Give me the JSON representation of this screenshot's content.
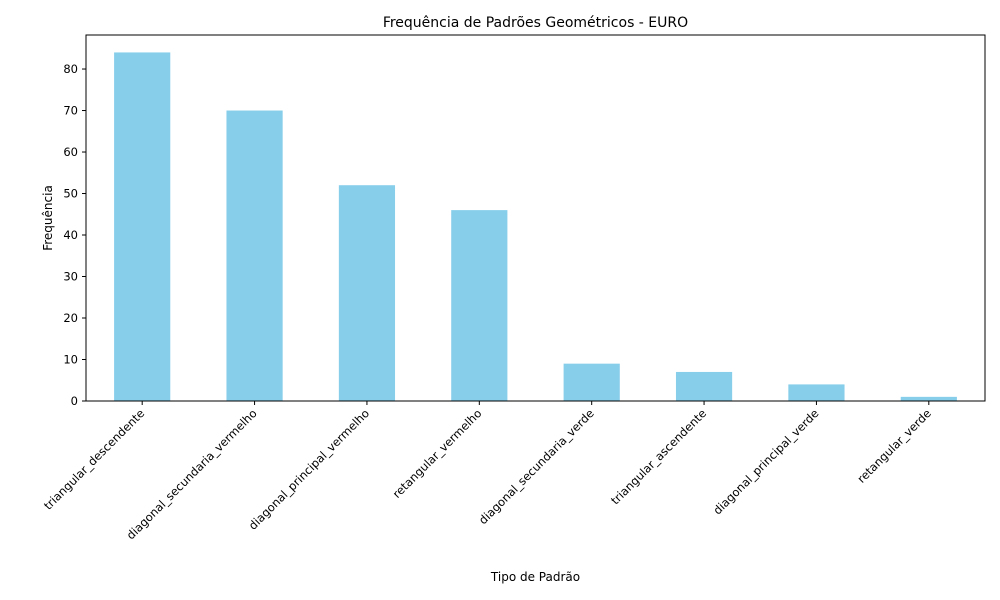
{
  "chart_data": {
    "type": "bar",
    "title": "Frequência de Padrões Geométricos - EURO",
    "xlabel": "Tipo de Padrão",
    "ylabel": "Frequência",
    "categories": [
      "triangular_descendente",
      "diagonal_secundaria_vermelho",
      "diagonal_principal_vermelho",
      "retangular_vermelho",
      "diagonal_secundaria_verde",
      "triangular_ascendente",
      "diagonal_principal_verde",
      "retangular_verde"
    ],
    "values": [
      84,
      70,
      52,
      46,
      9,
      7,
      4,
      1
    ],
    "ylim": [
      0,
      88.2
    ],
    "yticks": [
      0,
      10,
      20,
      30,
      40,
      50,
      60,
      70,
      80
    ],
    "grid": false,
    "legend": "none",
    "bar_color": "#87CEEB"
  }
}
